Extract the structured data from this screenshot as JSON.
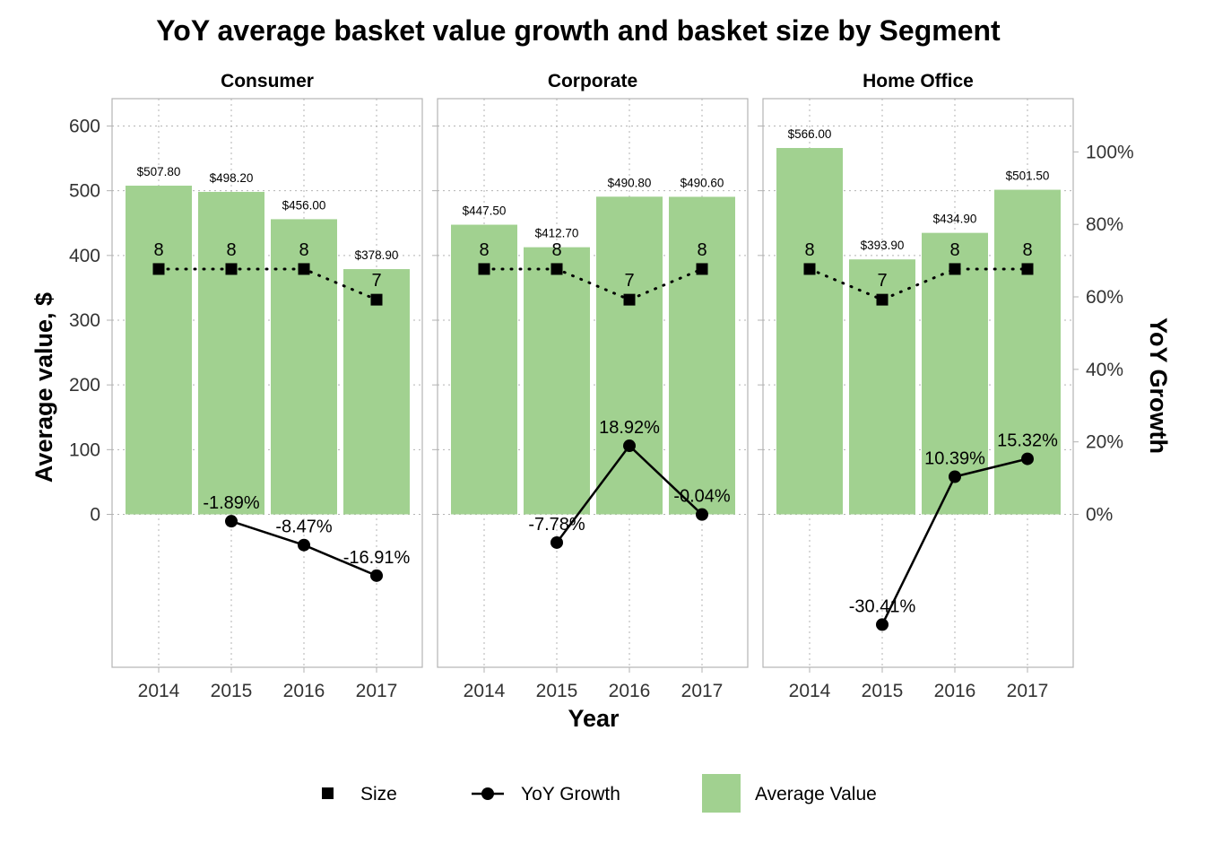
{
  "chart_data": {
    "type": "bar",
    "title": "YoY average basket value growth and basket size by Segment",
    "xlabel": "Year",
    "ylabel": "Average value, $",
    "y2label": "YoY Growth",
    "categories": [
      "2014",
      "2015",
      "2016",
      "2017"
    ],
    "ylim": [
      -237,
      600
    ],
    "yticks": [
      0,
      100,
      200,
      300,
      400,
      500,
      600
    ],
    "y2ticks": [
      "0%",
      "20%",
      "40%",
      "60%",
      "80%",
      "100%"
    ],
    "y2_to_y1_factor": 5.6,
    "size_scale": 47.38,
    "grid": true,
    "facets": [
      {
        "name": "Consumer",
        "values": [
          507.8,
          498.2,
          456.0,
          378.9
        ],
        "value_labels": [
          "$507.80",
          "$498.20",
          "$456.00",
          "$378.90"
        ],
        "size": [
          8,
          8,
          8,
          7
        ],
        "growth": [
          null,
          -1.89,
          -8.47,
          -16.91
        ],
        "growth_labels": [
          "",
          "-1.89%",
          "-8.47%",
          "-16.91%"
        ]
      },
      {
        "name": "Corporate",
        "values": [
          447.5,
          412.7,
          490.8,
          490.6
        ],
        "value_labels": [
          "$447.50",
          "$412.70",
          "$490.80",
          "$490.60"
        ],
        "size": [
          8,
          8,
          7,
          8
        ],
        "growth": [
          null,
          -7.78,
          18.92,
          -0.04
        ],
        "growth_labels": [
          "",
          "-7.78%",
          "18.92%",
          "-0.04%"
        ]
      },
      {
        "name": "Home Office",
        "values": [
          566.0,
          393.9,
          434.9,
          501.5
        ],
        "value_labels": [
          "$566.00",
          "$393.90",
          "$434.90",
          "$501.50"
        ],
        "size": [
          8,
          7,
          8,
          8
        ],
        "growth": [
          null,
          -30.41,
          10.39,
          15.32
        ],
        "growth_labels": [
          "",
          "-30.41%",
          "10.39%",
          "15.32%"
        ]
      }
    ],
    "legend": {
      "placement": "bottom",
      "items": [
        {
          "label": "Size",
          "kind": "square"
        },
        {
          "label": "YoY Growth",
          "kind": "line-point"
        },
        {
          "label": "Average Value",
          "kind": "fill"
        }
      ]
    },
    "colors": {
      "bar": "#a1d190",
      "marker": "#000000",
      "panel_border": "#b3b3b3",
      "grid": "#b3b3b3"
    }
  }
}
